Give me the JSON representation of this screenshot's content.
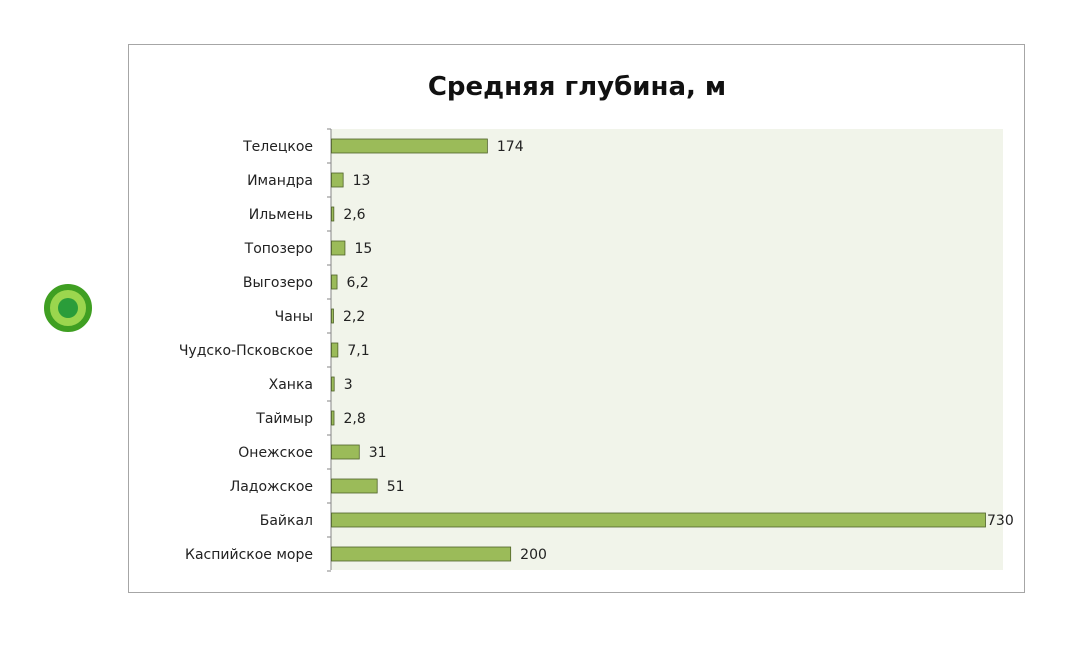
{
  "colors": {
    "bar_fill": "#9bbb59",
    "bar_stroke": "#4f6228",
    "plot_bg": "#f1f4ea",
    "marker_ring": "#3f9f22",
    "marker_fill": "#9bd64e",
    "marker_dot": "#2a9d3a"
  },
  "chart_data": {
    "type": "bar",
    "orientation": "horizontal",
    "title": "Средняя глубина, м",
    "xlabel": "",
    "ylabel": "",
    "grid": false,
    "legend": "none",
    "xlim": [
      0,
      730
    ],
    "categories": [
      "Телецкое",
      "Имандра",
      "Ильмень",
      "Топозеро",
      "Выгозеро",
      "Чаны",
      "Чудско-Псковское",
      "Ханка",
      "Таймыр",
      "Онежское",
      "Ладожское",
      "Байкал",
      "Каспийское море"
    ],
    "values": [
      174,
      13,
      2.6,
      15,
      6.2,
      2.2,
      7.1,
      3,
      2.8,
      31,
      51,
      730,
      200
    ],
    "value_labels": [
      "174",
      "13",
      "2,6",
      "15",
      "6,2",
      "2,2",
      "7,1",
      "3",
      "2,8",
      "31",
      "51",
      "730",
      "200"
    ]
  }
}
